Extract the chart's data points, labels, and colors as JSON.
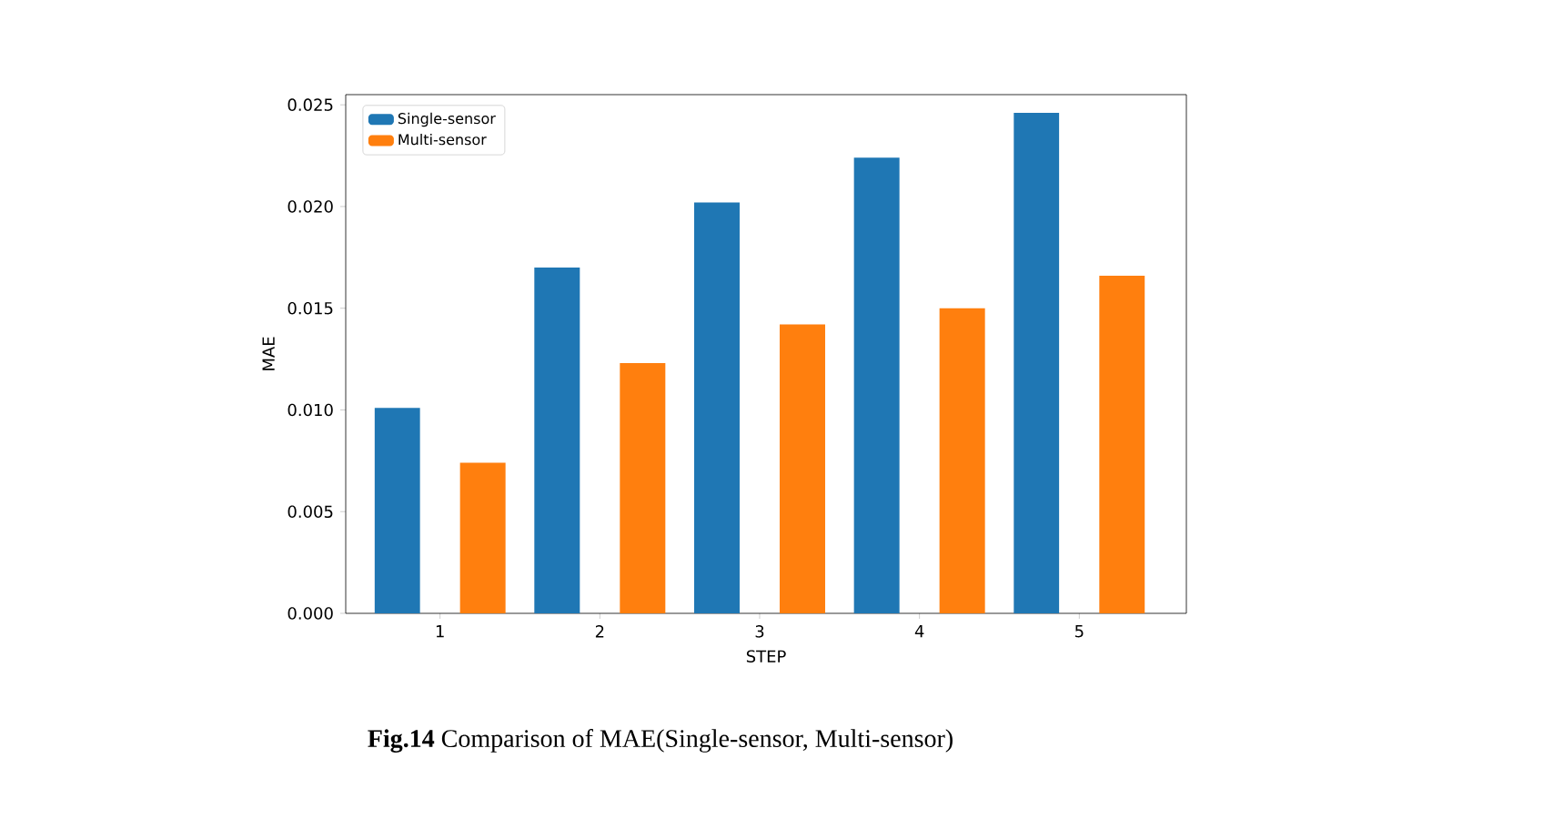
{
  "chart_data": {
    "type": "bar",
    "xlabel": "STEP",
    "ylabel": "MAE",
    "categories": [
      "1",
      "2",
      "3",
      "4",
      "5"
    ],
    "series": [
      {
        "name": "Single-sensor",
        "color": "#1f77b4",
        "values": [
          0.0101,
          0.017,
          0.0202,
          0.0224,
          0.0246
        ]
      },
      {
        "name": "Multi-sensor",
        "color": "#ff7f0e",
        "values": [
          0.0074,
          0.0123,
          0.0142,
          0.015,
          0.0166
        ]
      }
    ],
    "ylim": [
      0,
      0.0255
    ],
    "yticks": [
      {
        "value": 0,
        "label": "0.000"
      },
      {
        "value": 0.005,
        "label": "0.005"
      },
      {
        "value": 0.01,
        "label": "0.010"
      },
      {
        "value": 0.015,
        "label": "0.015"
      },
      {
        "value": 0.02,
        "label": "0.020"
      },
      {
        "value": 0.025,
        "label": "0.025"
      }
    ],
    "legend": "top left",
    "annotations": [
      "**Fig.14**    Comparison of MAE(Single-sensor, Multi-sensor)"
    ]
  }
}
